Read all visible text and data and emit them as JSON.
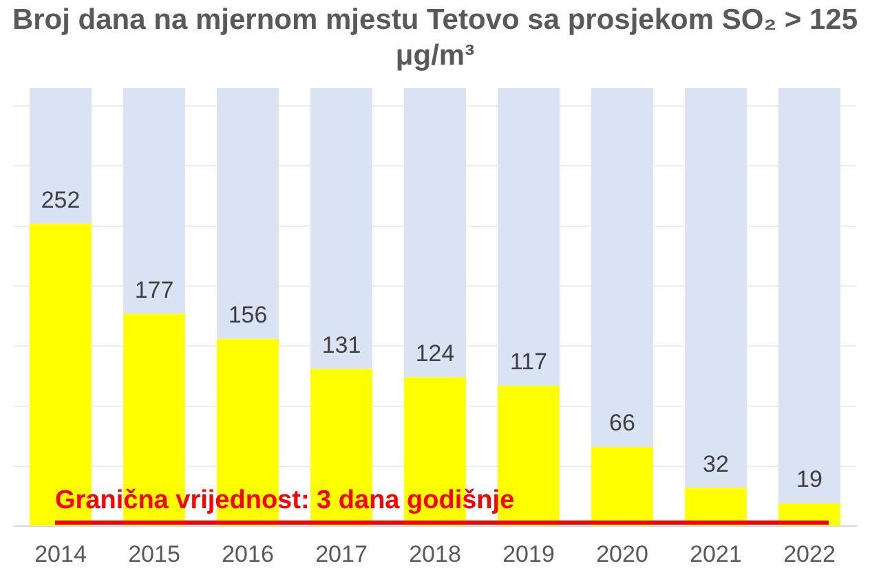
{
  "chart_data": {
    "type": "bar",
    "title": "Broj dana na mjernom mjestu Tetovo sa prosjekom SO₂ > 125 μg/m³",
    "categories": [
      "2014",
      "2015",
      "2016",
      "2017",
      "2018",
      "2019",
      "2020",
      "2021",
      "2022"
    ],
    "stacked": true,
    "series": [
      {
        "color": "#ffff00",
        "values": [
          252,
          177,
          156,
          131,
          124,
          117,
          66,
          32,
          19
        ],
        "value_labels": [
          "252",
          "177",
          "156",
          "131",
          "124",
          "117",
          "66",
          "32",
          "19"
        ]
      },
      {
        "color": "#dae3f3",
        "values": [
          113,
          188,
          209,
          234,
          241,
          248,
          299,
          333,
          346
        ]
      }
    ],
    "ylim": [
      0,
      365
    ],
    "yticks": [
      {
        "value": 0,
        "label": null
      },
      {
        "value": 50,
        "label": null
      },
      {
        "value": 100,
        "label": null
      },
      {
        "value": 150,
        "label": null
      },
      {
        "value": 200,
        "label": null
      },
      {
        "value": 250,
        "label": null
      },
      {
        "value": 300,
        "label": null
      },
      {
        "value": 350,
        "label": null
      }
    ],
    "grid": "y",
    "tick_labels": "x",
    "ref_lines": [
      {
        "axis": "y",
        "value": 3,
        "label": "Granična vrijednost: 3 dana godišnje",
        "color": "#ff0000"
      }
    ]
  }
}
